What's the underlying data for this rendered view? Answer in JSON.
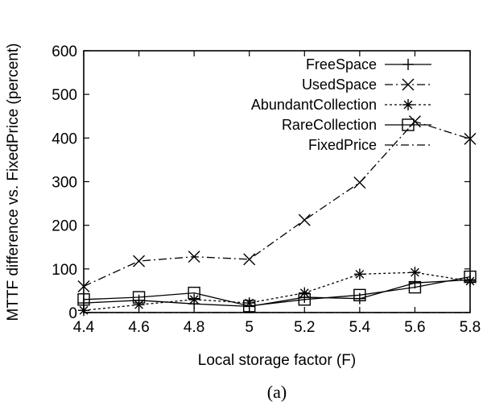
{
  "chart_data": {
    "type": "line",
    "caption": "(a)",
    "xlabel": "Local storage factor (F)",
    "ylabel": "MTTF difference vs. FixedPrice (percent)",
    "x": [
      4.4,
      4.6,
      4.8,
      5.0,
      5.2,
      5.4,
      5.6,
      5.8
    ],
    "x_tick_labels": [
      "4.4",
      "4.6",
      "4.8",
      "5",
      "5.2",
      "5.4",
      "5.6",
      "5.8"
    ],
    "y_ticks": [
      0,
      100,
      200,
      300,
      400,
      500,
      600
    ],
    "y_tick_labels": [
      "0",
      "100",
      "200",
      "300",
      "400",
      "500",
      "600"
    ],
    "xlim": [
      4.4,
      5.8
    ],
    "ylim": [
      0,
      600
    ],
    "grid": false,
    "legend_position": "top-right",
    "series": [
      {
        "name": "FreeSpace",
        "marker": "plus",
        "dash": "solid",
        "values": [
          22,
          28,
          20,
          14,
          35,
          32,
          68,
          75
        ]
      },
      {
        "name": "UsedSpace",
        "marker": "x",
        "dash": "dash-dot",
        "values": [
          60,
          118,
          128,
          122,
          212,
          298,
          438,
          398
        ]
      },
      {
        "name": "AbundantCollection",
        "marker": "star",
        "dash": "dotted",
        "values": [
          5,
          18,
          30,
          22,
          45,
          88,
          92,
          72
        ]
      },
      {
        "name": "RareCollection",
        "marker": "square",
        "dash": "solid",
        "values": [
          30,
          35,
          45,
          15,
          30,
          40,
          58,
          82
        ]
      },
      {
        "name": "FixedPrice",
        "marker": "none",
        "dash": "dash-dot",
        "values": [
          0,
          0,
          0,
          0,
          0,
          0,
          0,
          0
        ]
      }
    ]
  }
}
